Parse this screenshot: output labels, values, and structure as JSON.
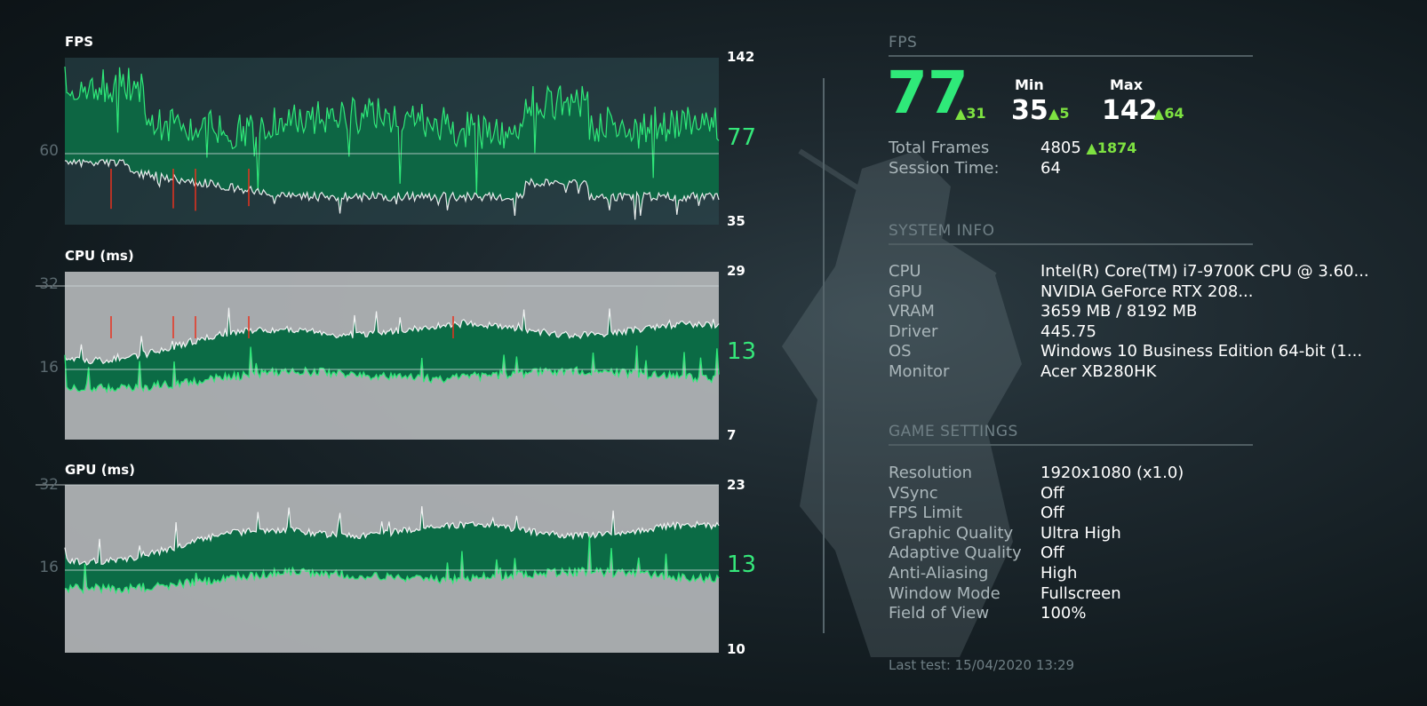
{
  "charts": {
    "fps": {
      "label": "FPS",
      "left_tick": "60",
      "top_value": "142",
      "current": "77",
      "bottom_value": "35"
    },
    "cpu": {
      "label": "CPU (ms)",
      "left_ticks": [
        "32",
        "16"
      ],
      "top_value": "29",
      "current": "13",
      "bottom_value": "7"
    },
    "gpu": {
      "label": "GPU (ms)",
      "left_ticks": [
        "32",
        "16"
      ],
      "top_value": "23",
      "current": "13",
      "bottom_value": "10"
    }
  },
  "fps_panel": {
    "title": "FPS",
    "current": "77",
    "current_delta": "31",
    "min_label": "Min",
    "min_value": "35",
    "min_delta": "5",
    "max_label": "Max",
    "max_value": "142",
    "max_delta": "64",
    "total_frames_label": "Total Frames",
    "total_frames_value": "4805",
    "total_frames_delta": "1874",
    "session_time_label": "Session Time:",
    "session_time_value": "64"
  },
  "system_info": {
    "title": "SYSTEM INFO",
    "rows": [
      {
        "key": "CPU",
        "value": "Intel(R) Core(TM) i7-9700K CPU @ 3.60..."
      },
      {
        "key": "GPU",
        "value": "NVIDIA GeForce RTX 208..."
      },
      {
        "key": "VRAM",
        "value": "3659 MB / 8192 MB"
      },
      {
        "key": "Driver",
        "value": "445.75"
      },
      {
        "key": "OS",
        "value": "Windows 10 Business Edition 64-bit (1..."
      },
      {
        "key": "Monitor",
        "value": "Acer XB280HK"
      }
    ]
  },
  "game_settings": {
    "title": "GAME SETTINGS",
    "rows": [
      {
        "key": "Resolution",
        "value": "1920x1080 (x1.0)"
      },
      {
        "key": "VSync",
        "value": "Off"
      },
      {
        "key": "FPS Limit",
        "value": "Off"
      },
      {
        "key": "Graphic Quality",
        "value": "Ultra High"
      },
      {
        "key": "Adaptive Quality",
        "value": "Off"
      },
      {
        "key": "Anti-Aliasing",
        "value": "High"
      },
      {
        "key": "Window Mode",
        "value": "Fullscreen"
      },
      {
        "key": "Field of View",
        "value": "100%"
      }
    ]
  },
  "footer": "Last test: 15/04/2020 13:29",
  "colors": {
    "accent_green": "#2fe979",
    "delta_green": "#7ee241",
    "area_green": "#0b6b45",
    "area_gray": "#b3b6b8",
    "spike_red": "#e8321f"
  },
  "icons": {
    "delta": "up-triangle-icon"
  }
}
